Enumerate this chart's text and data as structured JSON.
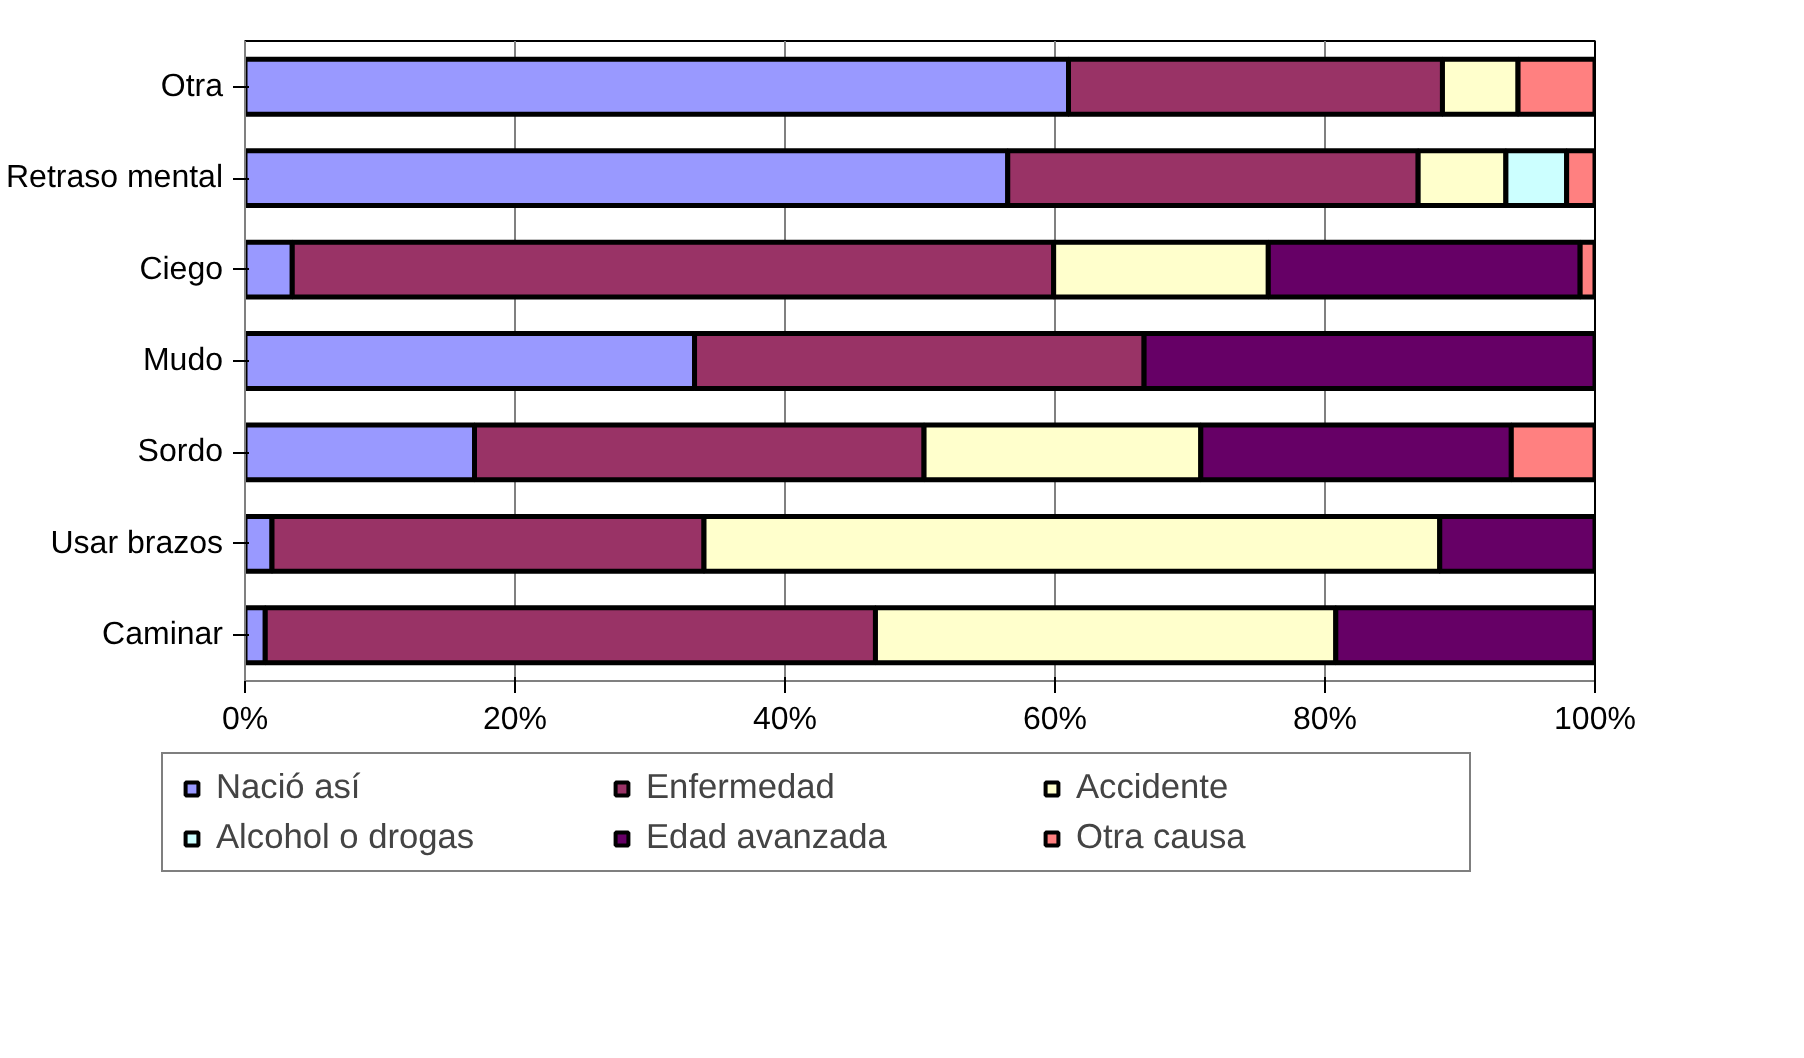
{
  "chart_data": {
    "type": "bar",
    "orientation": "horizontal",
    "stacked": true,
    "categories": [
      "Otra",
      "Retraso mental",
      "Ciego",
      "Mudo",
      "Sordo",
      "Usar brazos",
      "Caminar"
    ],
    "series": [
      {
        "name": "Nació así",
        "color": "#9999ff",
        "values": [
          61,
          56.5,
          3.5,
          33.3,
          17,
          2,
          1.5
        ]
      },
      {
        "name": "Enfermedad",
        "color": "#993366",
        "values": [
          27.7,
          30.4,
          56.4,
          33.3,
          33.3,
          32,
          45.2
        ]
      },
      {
        "name": "Accidente",
        "color": "#ffffcc",
        "values": [
          5.6,
          6.5,
          15.9,
          null,
          20.5,
          54.5,
          34.1
        ]
      },
      {
        "name": "Alcohol o drogas",
        "color": "#ccffff",
        "values": [
          null,
          4.5,
          null,
          null,
          null,
          null,
          null
        ]
      },
      {
        "name": "Edad avanzada",
        "color": "#660066",
        "values": [
          null,
          null,
          23.1,
          33.4,
          23,
          11.5,
          19.2
        ]
      },
      {
        "name": "Otra causa",
        "color": "#ff8080",
        "values": [
          5.7,
          2.1,
          1.1,
          null,
          6.2,
          null,
          null
        ]
      }
    ],
    "xlim": [
      0,
      100
    ],
    "xticks": [
      {
        "value": 0,
        "label": "0%"
      },
      {
        "value": 20,
        "label": "20%"
      },
      {
        "value": 40,
        "label": "40%"
      },
      {
        "value": 60,
        "label": "60%"
      },
      {
        "value": 80,
        "label": "80%"
      },
      {
        "value": 100,
        "label": "100%"
      }
    ],
    "grid": "x",
    "legend": "bottom"
  }
}
